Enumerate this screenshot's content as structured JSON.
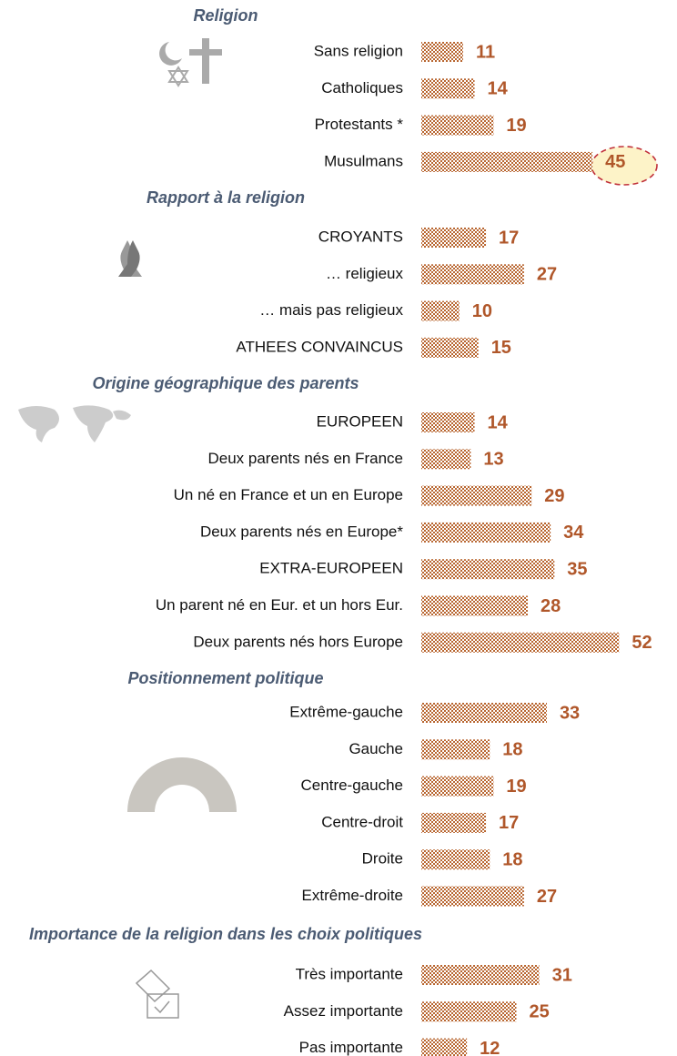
{
  "chart_data": [
    {
      "type": "bar",
      "title": "Religion",
      "color": "#b8652f",
      "categories": [
        "Sans religion",
        "Catholiques",
        "Protestants *",
        "Musulmans"
      ],
      "values": [
        11,
        14,
        19,
        45
      ]
    },
    {
      "type": "bar",
      "title": "Rapport à la religion",
      "color": "#b8652f",
      "categories": [
        "CROYANTS",
        "… religieux",
        "… mais pas religieux",
        "ATHEES CONVAINCUS"
      ],
      "values": [
        17,
        27,
        10,
        15
      ]
    },
    {
      "type": "bar",
      "title": "Origine géographique des parents",
      "color": "#b8652f",
      "categories": [
        "EUROPEEN",
        "Deux parents nés en France",
        "Un né en France et un en Europe",
        "Deux parents nés en Europe*",
        "EXTRA-EUROPEEN",
        "Un parent né en Eur. et un hors Eur.",
        "Deux parents nés hors Europe"
      ],
      "values": [
        14,
        13,
        29,
        34,
        35,
        28,
        52
      ]
    },
    {
      "type": "bar",
      "title": "Positionnement politique",
      "color": "#b8652f",
      "categories": [
        "Extrême-gauche",
        "Gauche",
        "Centre-gauche",
        "Centre-droit",
        "Droite",
        "Extrême-droite"
      ],
      "values": [
        33,
        18,
        19,
        17,
        18,
        27
      ]
    },
    {
      "type": "bar",
      "title": "Importance de la religion dans les choix politiques",
      "color": "#b8652f",
      "categories": [
        "Très importante",
        "Assez importante",
        "Pas importante"
      ],
      "values": [
        31,
        25,
        12
      ]
    }
  ]
}
